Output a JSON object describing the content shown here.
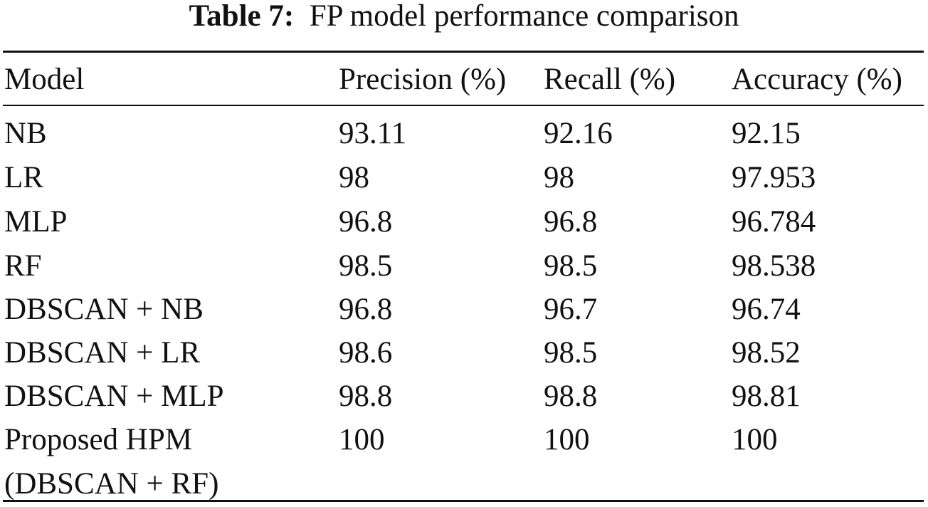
{
  "caption": {
    "label": "Table 7:",
    "text": "FP model performance comparison"
  },
  "header": [
    "Model",
    "Precision (%)",
    "Recall (%)",
    "Accuracy (%)"
  ],
  "rows": [
    {
      "model": "NB",
      "precision": "93.11",
      "recall": "92.16",
      "accuracy": "92.15"
    },
    {
      "model": "LR",
      "precision": "98",
      "recall": "98",
      "accuracy": "97.953"
    },
    {
      "model": "MLP",
      "precision": "96.8",
      "recall": "96.8",
      "accuracy": "96.784"
    },
    {
      "model": "RF",
      "precision": "98.5",
      "recall": "98.5",
      "accuracy": "98.538"
    },
    {
      "model": "DBSCAN + NB",
      "precision": "96.8",
      "recall": "96.7",
      "accuracy": "96.74"
    },
    {
      "model": "DBSCAN + LR",
      "precision": "98.6",
      "recall": "98.5",
      "accuracy": "98.52"
    },
    {
      "model": "DBSCAN + MLP",
      "precision": "98.8",
      "recall": "98.8",
      "accuracy": "98.81"
    },
    {
      "model": "Proposed HPM",
      "model_line2": "(DBSCAN + RF)",
      "precision": "100",
      "recall": "100",
      "accuracy": "100"
    }
  ]
}
